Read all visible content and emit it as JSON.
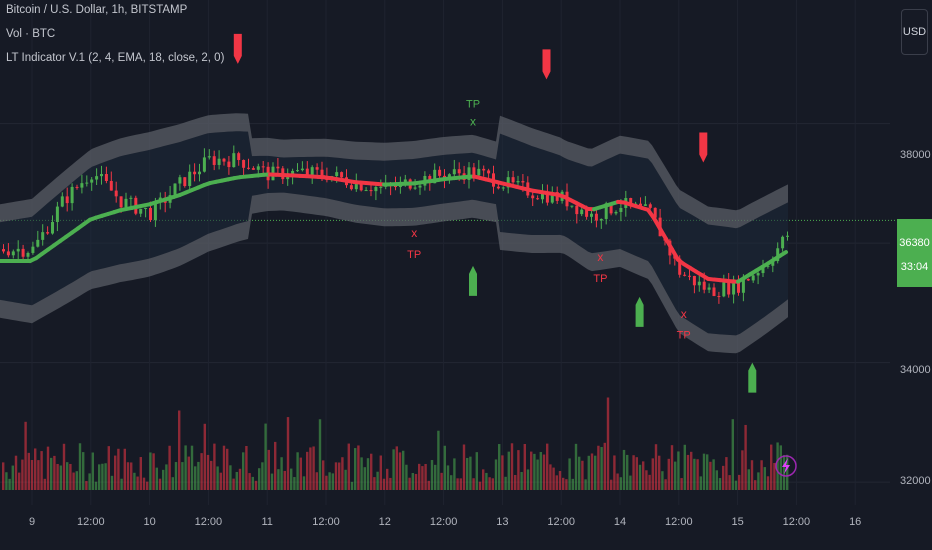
{
  "legend": {
    "title": "Bitcoin / U.S. Dollar, 1h, BITSTAMP",
    "volume": "Vol · BTC",
    "indicator": "LT Indicator V.1 (2, 4, EMA, 18, close, 2, 0)"
  },
  "currency_button": "USD",
  "price_axis": {
    "ticks": [
      "38000",
      "34000",
      "32000"
    ],
    "current_price": "36380",
    "countdown": "33:04"
  },
  "time_axis": [
    "9",
    "12:00",
    "10",
    "12:00",
    "11",
    "12:00",
    "12",
    "12:00",
    "13",
    "12:00",
    "14",
    "12:00",
    "15",
    "12:00",
    "16"
  ],
  "colors": {
    "background": "#161a25",
    "bull": "#4caf50",
    "bear": "#f23645",
    "band_fill": "#5a5d66",
    "current_price": "#4caf50"
  },
  "signals": {
    "tp_label": "TP",
    "x_label": "x"
  },
  "chart_data": {
    "type": "candlestick",
    "title": "Bitcoin / U.S. Dollar, 1h, BITSTAMP",
    "xlabel": "",
    "ylabel": "",
    "ylim": [
      31700,
      39400
    ],
    "grid": true,
    "x": [
      "9 00:00",
      "9 06:00",
      "9 12:00",
      "9 18:00",
      "10 00:00",
      "10 06:00",
      "10 12:00",
      "10 18:00",
      "11 00:00",
      "11 06:00",
      "11 12:00",
      "11 18:00",
      "12 00:00",
      "12 06:00",
      "12 12:00",
      "12 18:00",
      "13 00:00",
      "13 06:00",
      "13 12:00",
      "13 18:00",
      "14 00:00",
      "14 06:00",
      "14 12:00",
      "14 18:00",
      "15 00:00",
      "15 06:00",
      "15 12:00"
    ],
    "series": [
      {
        "name": "",
        "values": [
          35900,
          36700,
          37200,
          36700,
          36500,
          37000,
          37400,
          37400,
          37150,
          37180,
          37150,
          37000,
          36900,
          37050,
          37150,
          37200,
          37000,
          36850,
          36750,
          36450,
          36650,
          36500,
          35500,
          35200,
          35300,
          35700,
          36380
        ]
      },
      {
        "name": "",
        "values": [
          35700,
          36050,
          36400,
          36550,
          36650,
          36800,
          37000,
          37100,
          37150,
          37130,
          37100,
          37020,
          36980,
          37000,
          37070,
          37120,
          37000,
          36880,
          36800,
          36550,
          36700,
          36550,
          35700,
          35400,
          35350,
          35650,
          35960
        ]
      }
    ],
    "current_price": 36380,
    "signals": [
      {
        "x": "10 18:00",
        "type": "sell-arrow"
      },
      {
        "x": "13 09:00",
        "type": "sell-arrow"
      },
      {
        "x": "14 17:00",
        "type": "sell-arrow"
      },
      {
        "x": "12 18:00",
        "type": "buy-arrow"
      },
      {
        "x": "14 04:00",
        "type": "buy-arrow"
      },
      {
        "x": "15 03:00",
        "type": "buy-arrow"
      },
      {
        "x": "12 06:00",
        "label": "TP",
        "type": "take-profit"
      },
      {
        "x": "12 18:00",
        "label": "TP",
        "type": "take-profit"
      },
      {
        "x": "13 20:00",
        "label": "TP",
        "type": "take-profit"
      },
      {
        "x": "14 13:00",
        "label": "TP",
        "type": "take-profit"
      }
    ]
  }
}
